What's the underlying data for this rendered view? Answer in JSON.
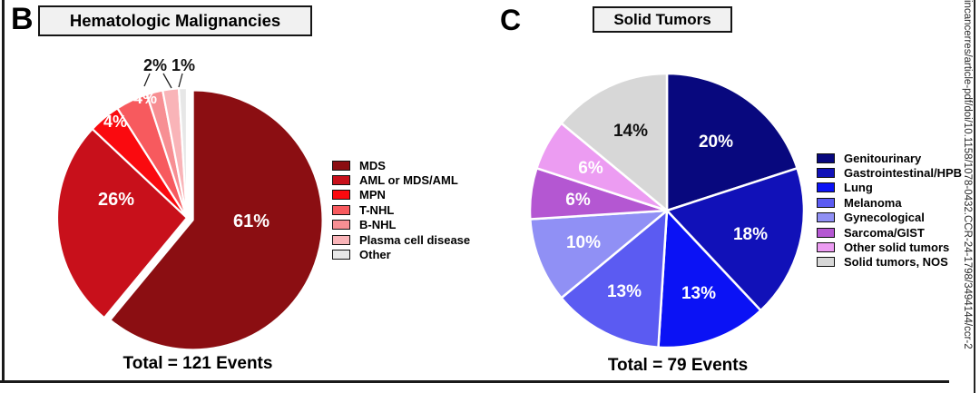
{
  "figure": {
    "panels": [
      {
        "letter": "B",
        "title": "Hematologic Malignancies",
        "total_label": "Total = 121 Events"
      },
      {
        "letter": "C",
        "title": "Solid Tumors",
        "total_label": "Total = 79 Events"
      }
    ],
    "watermark_text": "incancerres/article-pdf/doi/10.1158/1078-0432.CCR-24-1798/3494144/ccr-2"
  },
  "chart_data": [
    {
      "type": "pie",
      "panel": "B",
      "title": "Hematologic Malignancies",
      "total_events": 121,
      "total_label": "Total = 121 Events",
      "legend_position": "right",
      "start_angle_deg": 0,
      "direction": "clockwise",
      "slices": [
        {
          "label": "MDS",
          "value": 61,
          "pct_label": "61%",
          "color": "#8B0E12",
          "exploded": true
        },
        {
          "label": "AML or MDS/AML",
          "value": 26,
          "pct_label": "26%",
          "color": "#C8101B"
        },
        {
          "label": "MPN",
          "value": 4,
          "pct_label": "4%",
          "color": "#FA0A0F"
        },
        {
          "label": "T-NHL",
          "value": 4,
          "pct_label": "4%",
          "color": "#F75A5E"
        },
        {
          "label": "B-NHL",
          "value": 2,
          "pct_label": "2%",
          "color": "#F78F93"
        },
        {
          "label": "Plasma cell disease",
          "value": 2,
          "pct_label": "2%",
          "color": "#F9B4B8"
        },
        {
          "label": "Other",
          "value": 1,
          "pct_label": "1%",
          "color": "#E7E7E7"
        }
      ]
    },
    {
      "type": "pie",
      "panel": "C",
      "title": "Solid Tumors",
      "total_events": 79,
      "total_label": "Total = 79 Events",
      "legend_position": "right",
      "start_angle_deg": 0,
      "direction": "clockwise",
      "slices": [
        {
          "label": "Genitourinary",
          "value": 20,
          "pct_label": "20%",
          "color": "#08087E"
        },
        {
          "label": "Gastrointestinal/HPB",
          "value": 18,
          "pct_label": "18%",
          "color": "#1111B8"
        },
        {
          "label": "Lung",
          "value": 13,
          "pct_label": "13%",
          "color": "#0B12F5"
        },
        {
          "label": "Melanoma",
          "value": 13,
          "pct_label": "13%",
          "color": "#5B5BF2"
        },
        {
          "label": "Gynecological",
          "value": 10,
          "pct_label": "10%",
          "color": "#9090F5"
        },
        {
          "label": "Sarcoma/GIST",
          "value": 6,
          "pct_label": "6%",
          "color": "#B457D2"
        },
        {
          "label": "Other solid tumors",
          "value": 6,
          "pct_label": "6%",
          "color": "#EC9CF2"
        },
        {
          "label": "Solid tumors, NOS",
          "value": 14,
          "pct_label": "14%",
          "color": "#D7D7D7"
        }
      ]
    }
  ]
}
